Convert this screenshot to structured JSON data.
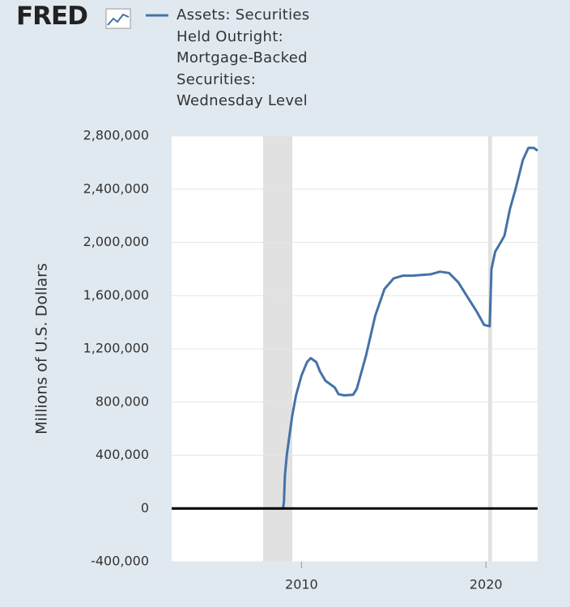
{
  "chart_data": {
    "type": "line",
    "logo": "FRED",
    "ylabel": "Millions of U.S. Dollars",
    "xlim": [
      2002.96,
      2022.8
    ],
    "xticks": [
      2010,
      2020
    ],
    "ylim": [
      -400000,
      2800000
    ],
    "yticks": [
      {
        "value": -400000,
        "label": "-400,000"
      },
      0,
      {
        "value": 400000,
        "label": "400,000"
      },
      {
        "value": 800000,
        "label": "800,000"
      },
      {
        "value": 1200000,
        "label": "1,200,000"
      },
      {
        "value": 1600000,
        "label": "1,600,000"
      },
      {
        "value": 2000000,
        "label": "2,000,000"
      },
      {
        "value": 2400000,
        "label": "2,400,000"
      },
      {
        "value": 2800000,
        "label": "2,800,000"
      }
    ],
    "grid": true,
    "recessions": [
      [
        2007.92,
        2009.5
      ],
      [
        2020.12,
        2020.33
      ]
    ],
    "series": [
      {
        "name": "Assets: Securities Held Outright: Mortgage-Backed Securities: Wednesday Level",
        "color": "#4572a7",
        "x": [
          2002.96,
          2005,
          2008,
          2009.0,
          2009.05,
          2009.1,
          2009.2,
          2009.3,
          2009.5,
          2009.7,
          2010.0,
          2010.3,
          2010.5,
          2010.8,
          2011.0,
          2011.3,
          2011.8,
          2012.0,
          2012.3,
          2012.8,
          2013.0,
          2013.5,
          2014.0,
          2014.5,
          2015.0,
          2015.5,
          2016.0,
          2017.0,
          2017.5,
          2018.0,
          2018.5,
          2019.0,
          2019.5,
          2019.9,
          2020.2,
          2020.3,
          2020.5,
          2020.8,
          2021.0,
          2021.3,
          2021.6,
          2022.0,
          2022.3,
          2022.6,
          2022.8
        ],
        "values": [
          0,
          0,
          0,
          0,
          50000,
          250000,
          400000,
          500000,
          700000,
          850000,
          1000000,
          1100000,
          1130000,
          1100000,
          1030000,
          960000,
          910000,
          860000,
          850000,
          855000,
          900000,
          1150000,
          1450000,
          1650000,
          1730000,
          1750000,
          1750000,
          1760000,
          1780000,
          1770000,
          1700000,
          1590000,
          1480000,
          1380000,
          1370000,
          1800000,
          1930000,
          2000000,
          2050000,
          2250000,
          2400000,
          2620000,
          2710000,
          2710000,
          2690000
        ]
      }
    ]
  }
}
